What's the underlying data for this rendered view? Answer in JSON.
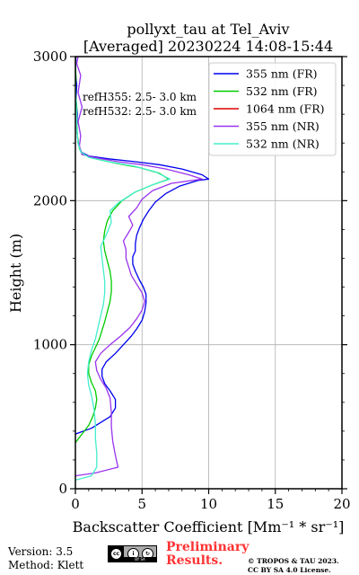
{
  "chart_data": {
    "type": "line",
    "title": "pollyxt_tau at Tel_Aviv",
    "subtitle": "[Averaged] 20230224 14:08-15:44",
    "xlabel": "Backscatter Coefficient [Mm⁻¹ * sr⁻¹]",
    "ylabel": "Height (m)",
    "xlim": [
      0,
      20
    ],
    "ylim": [
      0,
      3000
    ],
    "xticks": [
      0,
      5,
      10,
      15,
      20
    ],
    "yticks": [
      0,
      1000,
      2000,
      3000
    ],
    "grid": true,
    "legend_position": "top-right",
    "annotations": [
      "refH355:  2.5- 3.0 km",
      "refH532:  2.5- 3.0 km"
    ],
    "series": [
      {
        "name": "355 nm (FR)",
        "color": "#0000ee",
        "points": [
          [
            0,
            380
          ],
          [
            1.2,
            420
          ],
          [
            2.6,
            500
          ],
          [
            3.0,
            560
          ],
          [
            3.0,
            620
          ],
          [
            2.6,
            680
          ],
          [
            2.2,
            730
          ],
          [
            2.0,
            780
          ],
          [
            2.0,
            830
          ],
          [
            2.3,
            880
          ],
          [
            3.0,
            940
          ],
          [
            3.6,
            1000
          ],
          [
            4.2,
            1060
          ],
          [
            4.6,
            1110
          ],
          [
            5.0,
            1170
          ],
          [
            5.2,
            1230
          ],
          [
            5.3,
            1290
          ],
          [
            5.3,
            1350
          ],
          [
            5.1,
            1400
          ],
          [
            4.8,
            1450
          ],
          [
            4.5,
            1510
          ],
          [
            4.3,
            1560
          ],
          [
            4.3,
            1610
          ],
          [
            4.5,
            1650
          ],
          [
            4.5,
            1700
          ],
          [
            4.6,
            1760
          ],
          [
            4.8,
            1810
          ],
          [
            5.1,
            1870
          ],
          [
            5.5,
            1930
          ],
          [
            6.0,
            1990
          ],
          [
            6.8,
            2050
          ],
          [
            7.8,
            2100
          ],
          [
            9.2,
            2140
          ],
          [
            10.0,
            2150
          ],
          [
            9.5,
            2180
          ],
          [
            8.0,
            2220
          ],
          [
            6.3,
            2250
          ],
          [
            4.5,
            2270
          ],
          [
            2.5,
            2290
          ],
          [
            1.0,
            2310
          ],
          [
            0.4,
            2340
          ],
          [
            0.2,
            2400
          ],
          [
            0.1,
            2500
          ],
          [
            0.15,
            2600
          ],
          [
            0.05,
            2700
          ],
          [
            0.1,
            2800
          ],
          [
            0.0,
            2900
          ],
          [
            0.05,
            3000
          ]
        ]
      },
      {
        "name": "532 nm (FR)",
        "color": "#00cc00",
        "points": [
          [
            0,
            320
          ],
          [
            0.5,
            380
          ],
          [
            1.0,
            440
          ],
          [
            1.3,
            500
          ],
          [
            1.5,
            560
          ],
          [
            1.6,
            620
          ],
          [
            1.5,
            680
          ],
          [
            1.2,
            740
          ],
          [
            1.0,
            800
          ],
          [
            1.0,
            860
          ],
          [
            1.2,
            920
          ],
          [
            1.5,
            980
          ],
          [
            1.8,
            1040
          ],
          [
            2.0,
            1100
          ],
          [
            2.2,
            1160
          ],
          [
            2.4,
            1230
          ],
          [
            2.6,
            1300
          ],
          [
            2.7,
            1370
          ],
          [
            2.7,
            1440
          ],
          [
            2.6,
            1510
          ],
          [
            2.4,
            1580
          ],
          [
            2.2,
            1650
          ],
          [
            2.1,
            1720
          ],
          [
            2.2,
            1790
          ],
          [
            2.4,
            1860
          ],
          [
            2.8,
            1930
          ],
          [
            3.5,
            2000
          ],
          [
            4.5,
            2060
          ],
          [
            5.8,
            2110
          ],
          [
            7.0,
            2150
          ],
          [
            6.3,
            2190
          ],
          [
            4.8,
            2230
          ],
          [
            3.0,
            2260
          ],
          [
            1.5,
            2290
          ],
          [
            0.6,
            2320
          ],
          [
            0.3,
            2360
          ],
          [
            0.15,
            2450
          ],
          [
            0.1,
            2550
          ],
          [
            0.1,
            2650
          ],
          [
            0.0,
            2750
          ],
          [
            0.05,
            2850
          ],
          [
            0.0,
            2950
          ],
          [
            0.0,
            3000
          ]
        ]
      },
      {
        "name": "1064 nm (FR)",
        "color": "#dd0000",
        "points": []
      },
      {
        "name": "355 nm (NR)",
        "color": "#9933ee",
        "points": [
          [
            0,
            90
          ],
          [
            1.5,
            110
          ],
          [
            3.2,
            150
          ],
          [
            3.0,
            230
          ],
          [
            2.8,
            330
          ],
          [
            2.7,
            430
          ],
          [
            2.7,
            530
          ],
          [
            2.6,
            630
          ],
          [
            2.3,
            700
          ],
          [
            1.9,
            760
          ],
          [
            1.6,
            820
          ],
          [
            1.5,
            880
          ],
          [
            1.9,
            940
          ],
          [
            2.6,
            1000
          ],
          [
            3.4,
            1060
          ],
          [
            4.1,
            1120
          ],
          [
            4.6,
            1180
          ],
          [
            5.0,
            1240
          ],
          [
            5.2,
            1300
          ],
          [
            5.0,
            1360
          ],
          [
            4.6,
            1420
          ],
          [
            4.2,
            1480
          ],
          [
            4.0,
            1540
          ],
          [
            3.8,
            1600
          ],
          [
            3.8,
            1660
          ],
          [
            3.6,
            1720
          ],
          [
            4.0,
            1780
          ],
          [
            4.3,
            1830
          ],
          [
            4.0,
            1890
          ],
          [
            4.6,
            1950
          ],
          [
            5.0,
            2010
          ],
          [
            5.8,
            2070
          ],
          [
            7.2,
            2120
          ],
          [
            9.5,
            2150
          ],
          [
            8.5,
            2180
          ],
          [
            6.8,
            2220
          ],
          [
            5.0,
            2250
          ],
          [
            3.2,
            2270
          ],
          [
            1.4,
            2300
          ],
          [
            0.5,
            2320
          ],
          [
            0.3,
            2380
          ],
          [
            0.4,
            2450
          ],
          [
            0.2,
            2550
          ],
          [
            0.5,
            2650
          ],
          [
            0.2,
            2750
          ],
          [
            0.4,
            2870
          ],
          [
            0.1,
            2950
          ],
          [
            0.2,
            3000
          ]
        ]
      },
      {
        "name": "532 nm (NR)",
        "color": "#44eecc",
        "points": [
          [
            0,
            60
          ],
          [
            1.2,
            90
          ],
          [
            1.6,
            150
          ],
          [
            1.6,
            250
          ],
          [
            1.5,
            350
          ],
          [
            1.5,
            450
          ],
          [
            1.4,
            550
          ],
          [
            1.2,
            650
          ],
          [
            1.0,
            720
          ],
          [
            0.9,
            800
          ],
          [
            1.0,
            880
          ],
          [
            1.2,
            960
          ],
          [
            1.5,
            1040
          ],
          [
            1.7,
            1120
          ],
          [
            1.9,
            1200
          ],
          [
            2.1,
            1280
          ],
          [
            2.2,
            1360
          ],
          [
            2.2,
            1440
          ],
          [
            2.1,
            1520
          ],
          [
            2.0,
            1600
          ],
          [
            1.9,
            1680
          ],
          [
            2.3,
            1760
          ],
          [
            2.7,
            1850
          ],
          [
            2.6,
            1930
          ],
          [
            3.3,
            1990
          ],
          [
            4.5,
            2060
          ],
          [
            5.8,
            2110
          ],
          [
            7.1,
            2150
          ],
          [
            6.0,
            2200
          ],
          [
            4.4,
            2240
          ],
          [
            2.5,
            2270
          ],
          [
            1.0,
            2300
          ],
          [
            0.4,
            2340
          ],
          [
            0.2,
            2400
          ],
          [
            0.1,
            2500
          ],
          [
            0.1,
            2600
          ],
          [
            0.05,
            2700
          ],
          [
            0.0,
            2850
          ],
          [
            0.0,
            3000
          ]
        ]
      }
    ]
  },
  "footer": {
    "version": "Version: 3.5",
    "method": "Method: Klett",
    "preliminary_line1": "Preliminary",
    "preliminary_line2": "Results.",
    "copyright_line1": "© TROPOS & TAU 2023.",
    "copyright_line2": "CC BY SA 4.0 License.",
    "license_badge": "BY SA"
  },
  "colors": {
    "grid": "#b0b0b0",
    "preliminary": "#ff3333"
  }
}
